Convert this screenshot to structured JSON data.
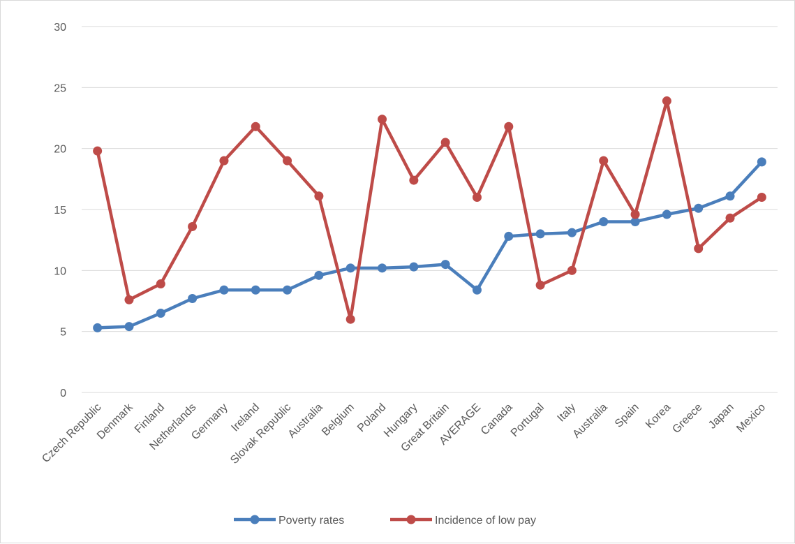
{
  "chart_data": {
    "type": "line",
    "title": "",
    "xlabel": "",
    "ylabel": "",
    "ylim": [
      0,
      30
    ],
    "yticks": [
      0,
      5,
      10,
      15,
      20,
      25,
      30
    ],
    "grid": "horizontal",
    "legend": "bottom",
    "categories": [
      "Czech Republic",
      "Denmark",
      "Finland",
      "Netherlands",
      "Germany",
      "Ireland",
      "Slovak Republic",
      "Australia",
      "Belgium",
      "Poland",
      "Hungary",
      "Great Britain",
      "AVERAGE",
      "Canada",
      "Portugal",
      "Italy",
      "Australia",
      "Spain",
      "Korea",
      "Greece",
      "Japan",
      "Mexico"
    ],
    "series": [
      {
        "name": "Poverty rates",
        "color": "#4a7ebb",
        "values": [
          5.3,
          5.4,
          6.5,
          7.7,
          8.4,
          8.4,
          8.4,
          9.6,
          10.2,
          10.2,
          10.3,
          10.5,
          8.4,
          12.8,
          13.0,
          13.1,
          14.0,
          14.0,
          14.6,
          15.1,
          16.1,
          18.9
        ]
      },
      {
        "name": "Incidence of low pay",
        "color": "#be4b48",
        "values": [
          19.8,
          7.6,
          8.9,
          13.6,
          19.0,
          21.8,
          19.0,
          16.1,
          6.0,
          22.4,
          17.4,
          20.5,
          16.0,
          21.8,
          8.8,
          10.0,
          19.0,
          14.6,
          23.9,
          11.8,
          14.3,
          16.0
        ]
      }
    ]
  }
}
